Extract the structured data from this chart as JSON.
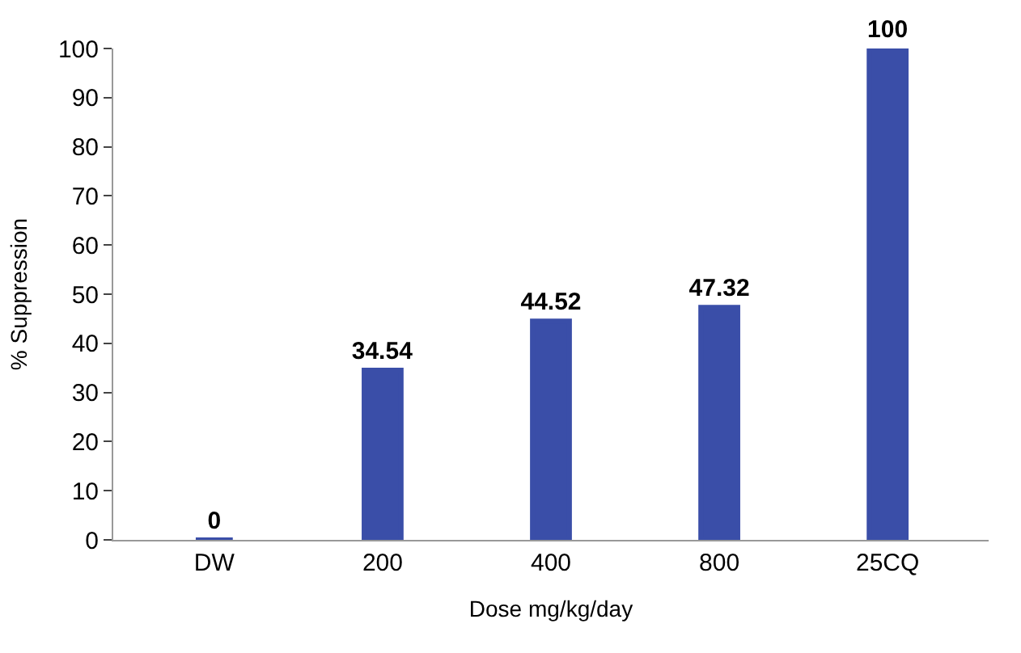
{
  "chart_data": {
    "type": "bar",
    "xlabel": "Dose mg/kg/day",
    "ylabel": "% Suppression",
    "categories": [
      "DW",
      "200",
      "400",
      "800",
      "25CQ"
    ],
    "values": [
      0,
      34.54,
      44.52,
      47.32,
      100
    ],
    "color": "#3a4ea8",
    "data_labels": true,
    "legend": false,
    "ylim": [
      0,
      100
    ],
    "yticks": [
      0,
      10,
      20,
      30,
      40,
      50,
      60,
      70,
      80,
      90,
      100
    ]
  }
}
